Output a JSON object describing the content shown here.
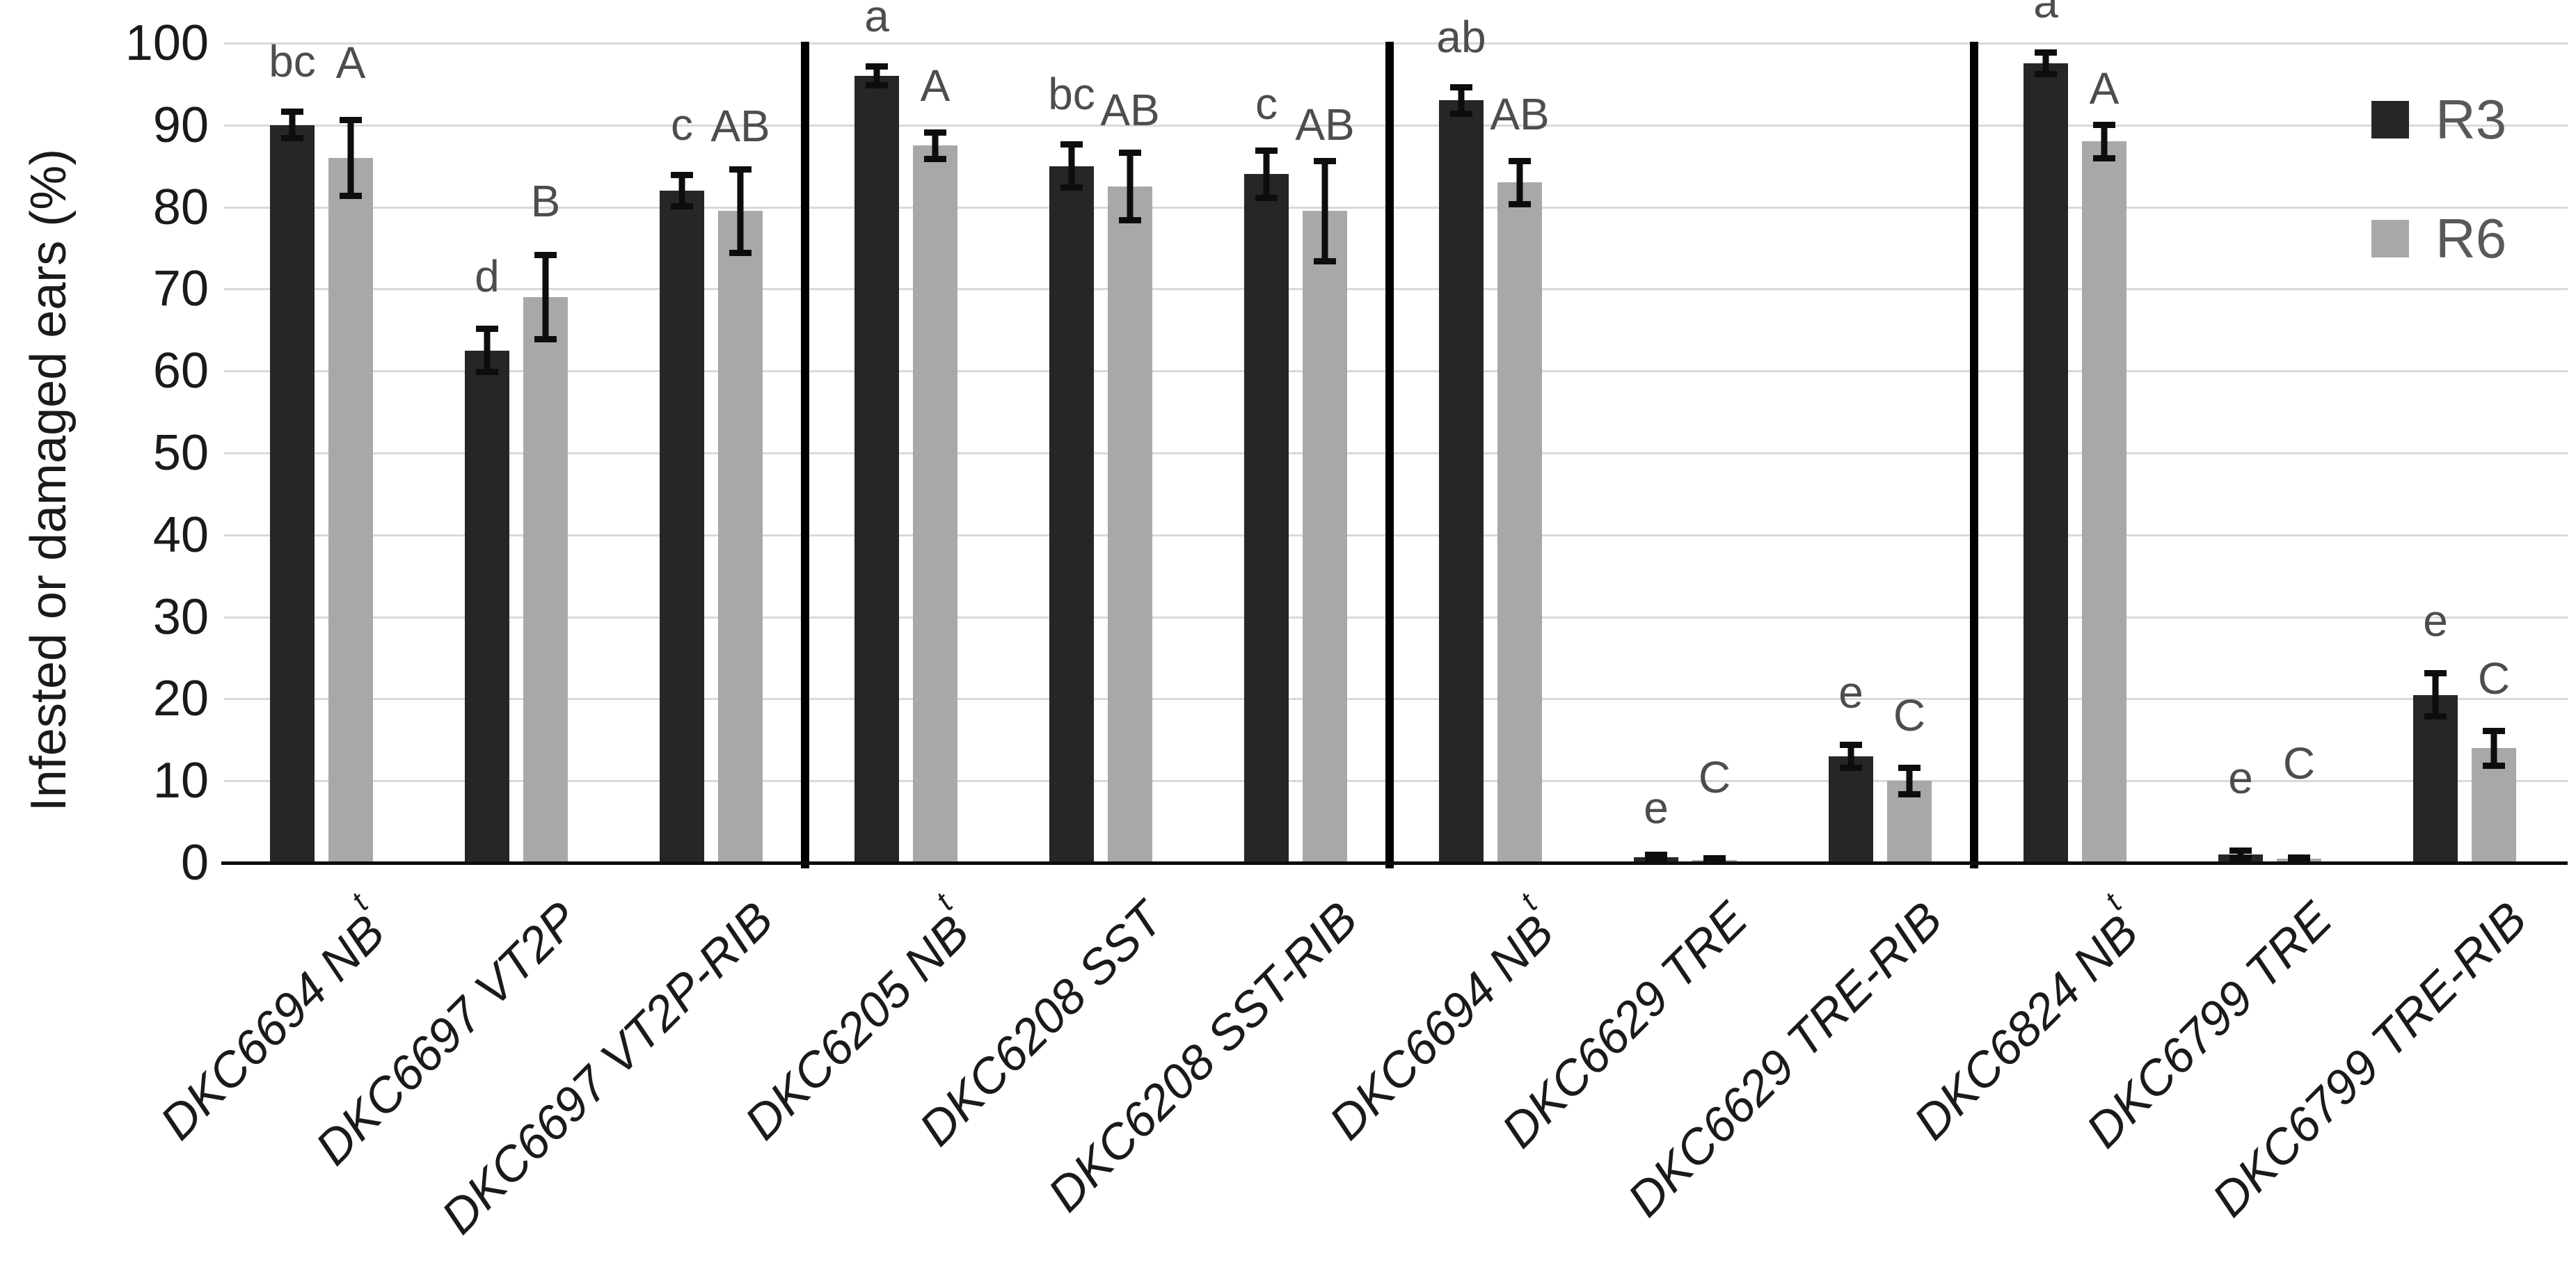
{
  "page": {
    "background": "#ffffff"
  },
  "chart_data": {
    "type": "bar",
    "title": "",
    "xlabel": "",
    "ylabel": "Infested or damaged ears (%)",
    "ylim": [
      0,
      100
    ],
    "yticks": [
      0,
      10,
      20,
      30,
      40,
      50,
      60,
      70,
      80,
      90,
      100
    ],
    "grid": true,
    "legend_position": "top-right",
    "categories": [
      "DKC6694 NBt",
      "DKC6697 VT2P",
      "DKC6697 VT2P-RIB",
      "DKC6205 NBt",
      "DKC6208 SST",
      "DKC6208 SST-RIB",
      "DKC6694 NBt",
      "DKC6629 TRE",
      "DKC6629 TRE-RIB",
      "DKC6824 NBt",
      "DKC6799 TRE",
      "DKC6799 TRE-RIB"
    ],
    "group_separators_after": [
      3,
      6,
      9
    ],
    "series": [
      {
        "name": "R3",
        "color": "#262626",
        "values": [
          90,
          62.5,
          82,
          96,
          85,
          84,
          93,
          0.7,
          13,
          97.5,
          1,
          20.5
        ],
        "errors": [
          2,
          3,
          2.3,
          1.5,
          3,
          3.3,
          2,
          0.7,
          1.8,
          1.7,
          0.9,
          3
        ],
        "letters": [
          "bc",
          "d",
          "c",
          "a",
          "bc",
          "c",
          "ab",
          "e",
          "e",
          "a",
          "e",
          "e"
        ],
        "letter_gaps_px": [
          35,
          38,
          35,
          35,
          35,
          30,
          35,
          30,
          38,
          35,
          67,
          38
        ]
      },
      {
        "name": "R6",
        "color": "#a8a8a8",
        "values": [
          86,
          69,
          79.5,
          87.5,
          82.5,
          79.5,
          83,
          0.3,
          10,
          88,
          0.5,
          14
        ],
        "errors": [
          5,
          5.5,
          5.5,
          2,
          4.5,
          6.5,
          3,
          0.4,
          2,
          2.4,
          0.5,
          2.5
        ],
        "letters": [
          "A",
          "B",
          "AB",
          "A",
          "AB",
          "AB",
          "AB",
          "C",
          "C",
          "A",
          "C",
          "C"
        ],
        "letter_gaps_px": [
          45,
          40,
          25,
          30,
          24,
          15,
          30,
          82,
          38,
          15,
          98,
          38
        ]
      }
    ],
    "colors": {
      "gridline": "#d9d9d9",
      "axis_line": "#0d0d0d",
      "separator": "#000000",
      "significance_letters": "#4d4d4d",
      "tick_text": "#1a1a1a",
      "legend_text": "#595959"
    }
  }
}
